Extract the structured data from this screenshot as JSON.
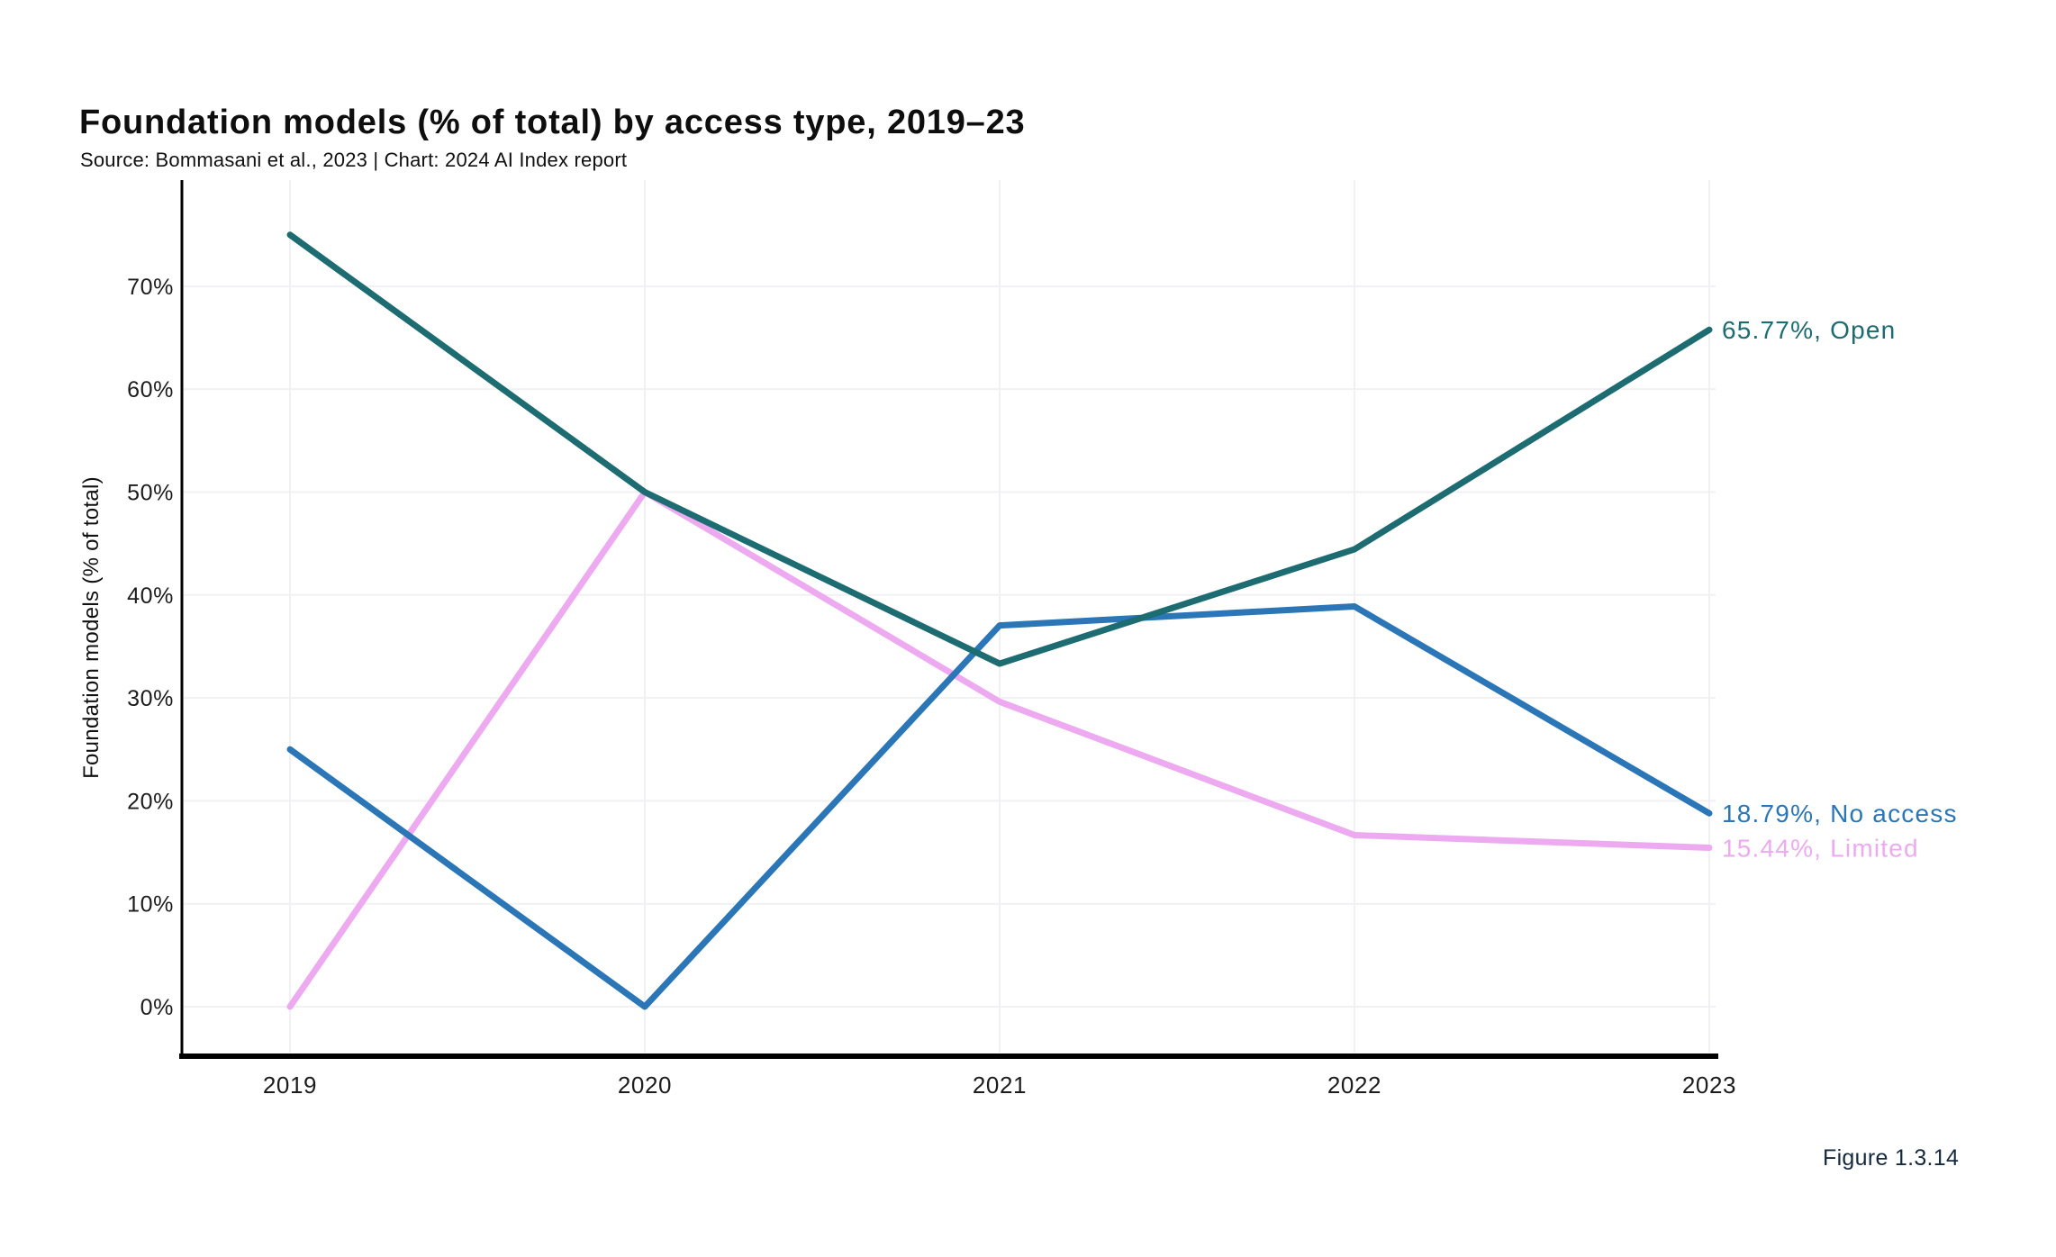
{
  "page": {
    "background": "#ffffff"
  },
  "header": {
    "title": "Foundation models (% of total) by access type, 2019–23",
    "source": "Source: Bommasani et al., 2023 | Chart: 2024 AI Index report"
  },
  "figure_label": "Figure 1.3.14",
  "chart_data": {
    "type": "line",
    "title": "Foundation models (% of total) by access type, 2019–23",
    "xlabel": "",
    "ylabel": "Foundation models (% of total)",
    "categories": [
      "2019",
      "2020",
      "2021",
      "2022",
      "2023"
    ],
    "yticks": [
      0,
      10,
      20,
      30,
      40,
      50,
      60,
      70
    ],
    "ytick_suffix": "%",
    "ylim": [
      0,
      77
    ],
    "grid": true,
    "legend_position": "end-of-line-labels-right",
    "colors": {
      "grid": "#f1f1f4",
      "axis": "#000000",
      "tick_text": "#1c1c1c",
      "figure_text": "#15293e",
      "background": "#ffffff"
    },
    "series": [
      {
        "name": "Limited",
        "color": "#edaaf1",
        "values": [
          0,
          50,
          29.63,
          16.67,
          15.44
        ],
        "end_label": "15.44%, Limited"
      },
      {
        "name": "No access",
        "color": "#2b76b7",
        "values": [
          25,
          0,
          37.04,
          38.89,
          18.79
        ],
        "end_label": "18.79%, No access"
      },
      {
        "name": "Open",
        "color": "#1c6c72",
        "values": [
          75,
          50,
          33.33,
          44.44,
          65.77
        ],
        "end_label": "65.77%, Open"
      }
    ]
  }
}
